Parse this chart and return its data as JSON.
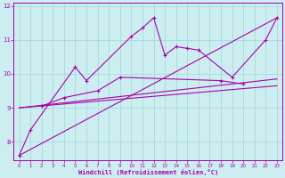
{
  "xlabel": "Windchill (Refroidissement éolien,°C)",
  "bg_color": "#cceef0",
  "grid_color": "#aadddd",
  "line_color": "#aa00aa",
  "x_values": [
    0,
    1,
    2,
    3,
    4,
    5,
    6,
    7,
    8,
    9,
    10,
    11,
    12,
    13,
    14,
    15,
    16,
    17,
    18,
    19,
    20,
    21,
    22,
    23
  ],
  "series1": [
    7.6,
    8.35,
    null,
    null,
    null,
    10.2,
    9.8,
    null,
    null,
    null,
    11.1,
    11.35,
    11.65,
    10.55,
    10.8,
    10.75,
    10.7,
    null,
    null,
    9.9,
    null,
    null,
    11.0,
    11.65
  ],
  "series2": [
    null,
    null,
    9.05,
    null,
    9.3,
    null,
    null,
    9.5,
    null,
    9.9,
    null,
    null,
    null,
    null,
    null,
    null,
    null,
    null,
    9.8,
    null,
    9.7,
    null,
    null,
    null
  ],
  "series3_x": [
    0,
    23
  ],
  "series3_y": [
    7.6,
    11.65
  ],
  "series4_x": [
    0,
    23
  ],
  "series4_y": [
    9.0,
    9.85
  ],
  "series5_x": [
    0,
    23
  ],
  "series5_y": [
    9.0,
    9.65
  ],
  "xlim": [
    -0.5,
    23.5
  ],
  "ylim": [
    7.45,
    12.1
  ],
  "yticks": [
    8,
    9,
    10,
    11,
    12
  ],
  "xticks": [
    0,
    1,
    2,
    3,
    4,
    5,
    6,
    7,
    8,
    9,
    10,
    11,
    12,
    13,
    14,
    15,
    16,
    17,
    18,
    19,
    20,
    21,
    22,
    23
  ]
}
